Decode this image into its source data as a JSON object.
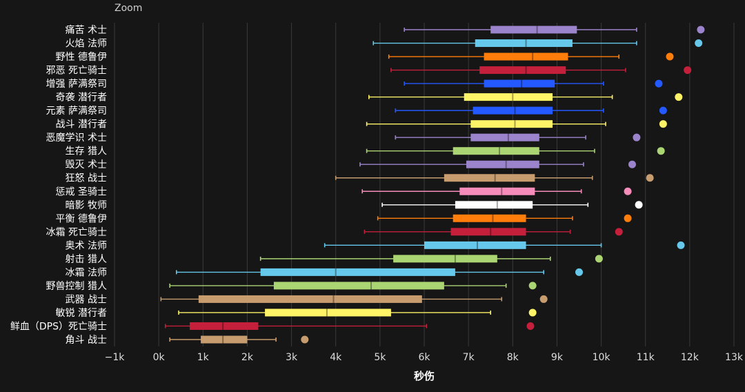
{
  "toolbar": {
    "zoom_label": "Zoom"
  },
  "colors": {
    "background": "#161616",
    "grid": "#3a3a3a",
    "text": "#ffffff",
    "tick_text": "#dddddd"
  },
  "chart_data": {
    "type": "boxplot",
    "title": "",
    "xlabel": "秒伤",
    "ylabel": "",
    "xlim": [
      -1000,
      13000
    ],
    "grid": true,
    "x_ticks": [
      -1000,
      0,
      1000,
      2000,
      3000,
      4000,
      5000,
      6000,
      7000,
      8000,
      9000,
      10000,
      11000,
      12000,
      13000
    ],
    "x_tick_labels": [
      "−1k",
      "0k",
      "1k",
      "2k",
      "3k",
      "4k",
      "5k",
      "6k",
      "7k",
      "8k",
      "9k",
      "10k",
      "11k",
      "12k",
      "13k"
    ],
    "series": [
      {
        "name": "痛苦 术士",
        "color": "#9b84cc",
        "min": 5550,
        "q1": 7500,
        "median": 8550,
        "q3": 9450,
        "max": 10800,
        "outlier": 12250
      },
      {
        "name": "火焰 法师",
        "color": "#66c8ea",
        "min": 4850,
        "q1": 7150,
        "median": 8300,
        "q3": 9350,
        "max": 10800,
        "outlier": 12200
      },
      {
        "name": "野性 德鲁伊",
        "color": "#ff7d0a",
        "min": 5200,
        "q1": 7350,
        "median": 8450,
        "q3": 9250,
        "max": 10400,
        "outlier": 11550
      },
      {
        "name": "邪恶 死亡骑士",
        "color": "#c41f3b",
        "min": 5250,
        "q1": 7250,
        "median": 8300,
        "q3": 9200,
        "max": 10550,
        "outlier": 11950
      },
      {
        "name": "增强 萨满祭司",
        "color": "#2459ff",
        "min": 5550,
        "q1": 7350,
        "median": 8200,
        "q3": 8950,
        "max": 10050,
        "outlier": 11300
      },
      {
        "name": "奇袭 潜行者",
        "color": "#fff468",
        "min": 4750,
        "q1": 6900,
        "median": 8000,
        "q3": 8900,
        "max": 10250,
        "outlier": 11750
      },
      {
        "name": "元素 萨满祭司",
        "color": "#2459ff",
        "min": 5350,
        "q1": 7100,
        "median": 8050,
        "q3": 8900,
        "max": 10050,
        "outlier": 11400
      },
      {
        "name": "战斗 潜行者",
        "color": "#fff468",
        "min": 4700,
        "q1": 7050,
        "median": 8050,
        "q3": 8900,
        "max": 10100,
        "outlier": 11400
      },
      {
        "name": "恶魔学识 术士",
        "color": "#9b84cc",
        "min": 5350,
        "q1": 7050,
        "median": 7900,
        "q3": 8600,
        "max": 9650,
        "outlier": 10800
      },
      {
        "name": "生存 猎人",
        "color": "#abd473",
        "min": 4700,
        "q1": 6650,
        "median": 7700,
        "q3": 8600,
        "max": 9850,
        "outlier": 11350
      },
      {
        "name": "毁灭 术士",
        "color": "#9b84cc",
        "min": 4550,
        "q1": 6950,
        "median": 7850,
        "q3": 8600,
        "max": 9600,
        "outlier": 10700
      },
      {
        "name": "狂怒 战士",
        "color": "#c79c6e",
        "min": 4000,
        "q1": 6450,
        "median": 7600,
        "q3": 8500,
        "max": 9800,
        "outlier": 11100
      },
      {
        "name": "惩戒 圣骑士",
        "color": "#f58cba",
        "min": 4600,
        "q1": 6800,
        "median": 7750,
        "q3": 8500,
        "max": 9550,
        "outlier": 10600
      },
      {
        "name": "暗影 牧师",
        "color": "#ffffff",
        "min": 5050,
        "q1": 6700,
        "median": 7650,
        "q3": 8450,
        "max": 9700,
        "outlier": 10850
      },
      {
        "name": "平衡 德鲁伊",
        "color": "#ff7d0a",
        "min": 4950,
        "q1": 6650,
        "median": 7550,
        "q3": 8300,
        "max": 9350,
        "outlier": 10600
      },
      {
        "name": "冰霜 死亡骑士",
        "color": "#c41f3b",
        "min": 4650,
        "q1": 6600,
        "median": 7500,
        "q3": 8300,
        "max": 9300,
        "outlier": 10400
      },
      {
        "name": "奥术 法师",
        "color": "#66c8ea",
        "min": 3750,
        "q1": 6000,
        "median": 7200,
        "q3": 8300,
        "max": 10000,
        "outlier": 11800
      },
      {
        "name": "射击 猎人",
        "color": "#abd473",
        "min": 2300,
        "q1": 5300,
        "median": 6700,
        "q3": 7650,
        "max": 8850,
        "outlier": 9950
      },
      {
        "name": "冰霜 法师",
        "color": "#66c8ea",
        "min": 400,
        "q1": 2300,
        "median": 4000,
        "q3": 6700,
        "max": 8700,
        "outlier": 9500
      },
      {
        "name": "野兽控制 猎人",
        "color": "#abd473",
        "min": 250,
        "q1": 2600,
        "median": 4800,
        "q3": 6450,
        "max": 7850,
        "outlier": 8450
      },
      {
        "name": "武器 战士",
        "color": "#c79c6e",
        "min": 50,
        "q1": 900,
        "median": 3950,
        "q3": 5950,
        "max": 7750,
        "outlier": 8700
      },
      {
        "name": "敏锐 潜行者",
        "color": "#fff468",
        "min": 450,
        "q1": 2400,
        "median": 3800,
        "q3": 5250,
        "max": 7500,
        "outlier": 8450
      },
      {
        "name": "鲜血（DPS）死亡骑士",
        "color": "#c41f3b",
        "min": 150,
        "q1": 700,
        "median": 1450,
        "q3": 2250,
        "max": 6050,
        "outlier": 8400
      },
      {
        "name": "角斗 战士",
        "color": "#c79c6e",
        "min": 250,
        "q1": 950,
        "median": 1450,
        "q3": 2000,
        "max": 2650,
        "outlier": 3300
      }
    ]
  }
}
